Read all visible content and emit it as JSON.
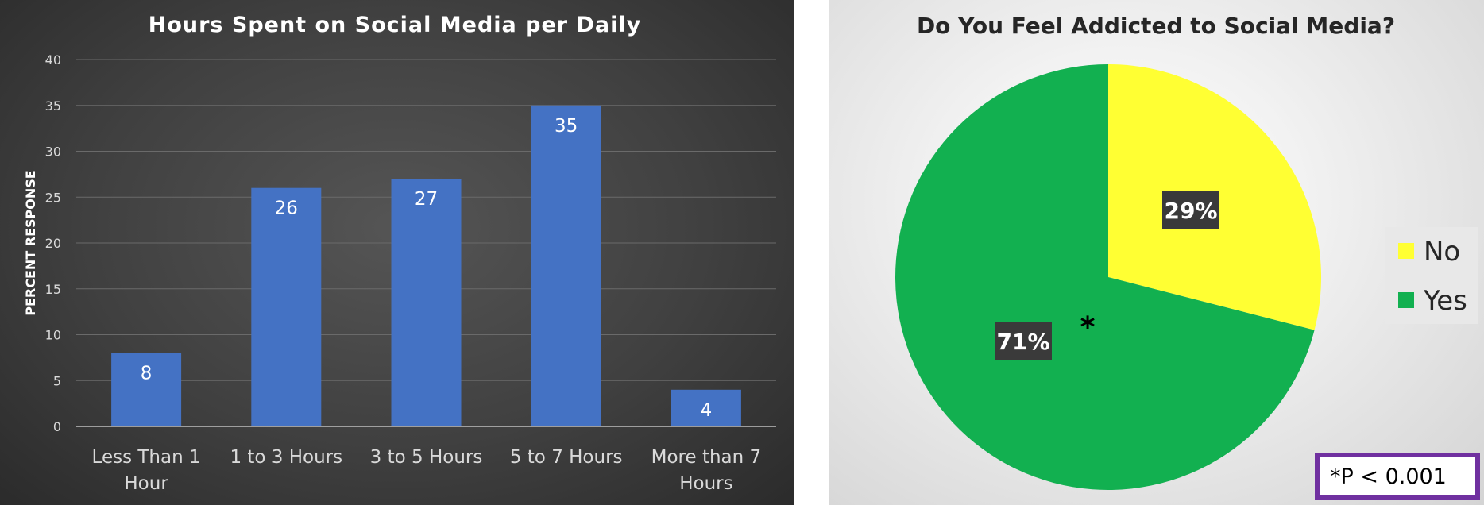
{
  "chart_data": [
    {
      "type": "bar",
      "title": "Hours Spent on Social Media per Daily",
      "xlabel": "",
      "ylabel": "PERCENT RESPONSE",
      "categories": [
        [
          "Less Than 1",
          "Hour"
        ],
        [
          "1 to 3 Hours"
        ],
        [
          "3 to 5 Hours"
        ],
        [
          "5 to 7 Hours"
        ],
        [
          "More than 7",
          "Hours"
        ]
      ],
      "values": [
        8,
        26,
        27,
        35,
        4
      ],
      "data_labels": [
        "8",
        "26",
        "27",
        "35",
        "4"
      ],
      "ylim": [
        0,
        40
      ],
      "yticks": [
        "0",
        "5",
        "10",
        "15",
        "20",
        "25",
        "30",
        "35",
        "40"
      ],
      "grid": true,
      "colors": {
        "bar": "#4472c4",
        "background": "#404040"
      }
    },
    {
      "type": "pie",
      "title": "Do You Feel Addicted to Social Media?",
      "labels": [
        "No",
        "Yes"
      ],
      "values": [
        29,
        71
      ],
      "data_labels": [
        "29%",
        "71%"
      ],
      "colors": [
        "#ffff33",
        "#12b050"
      ],
      "legend": "right",
      "annotation": "*",
      "note": "*P < 0.001",
      "note_border_color": "#7030a0"
    }
  ]
}
